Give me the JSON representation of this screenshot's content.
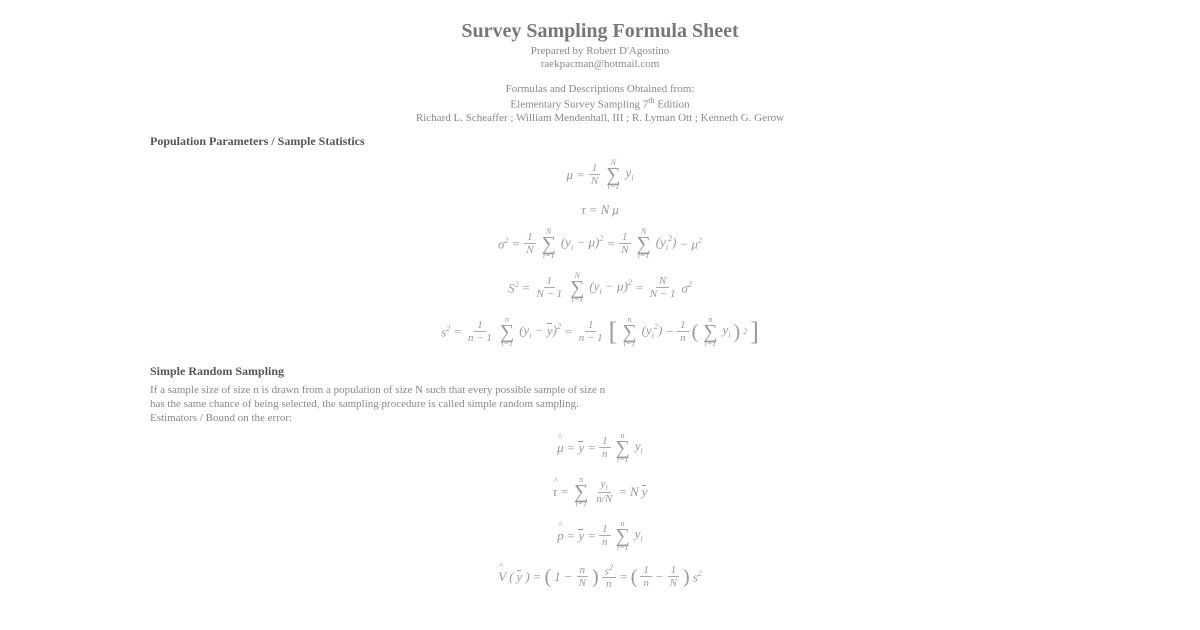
{
  "header": {
    "title": "Survey Sampling Formula Sheet",
    "prepared_by": "Prepared by Robert D'Agostino",
    "email": "raekpacman@hotmail.com",
    "source_line1": "Formulas and Descriptions Obtained from:",
    "source_line2": "Elementary Survey Sampling 7",
    "source_line2_sup": "th",
    "source_line2_suffix": " Edition",
    "authors": "Richard L. Scheaffer ; William Mendenhall, III ; R. Lyman Ott ; Kenneth G. Gerow"
  },
  "sections": {
    "pop_params": {
      "heading": "Population Parameters / Sample Statistics"
    },
    "srs": {
      "heading": "Simple Random Sampling",
      "desc_line1": "If a sample size of size n is drawn from a population of size N such that every possible sample of size n",
      "desc_line2": "has the same chance of being selected, the sampling procedure is called simple random sampling.",
      "desc_line3": "Estimators / Bound on the error:"
    }
  },
  "formulas": {
    "mu": {
      "lhs_sym": "μ",
      "eq": "=",
      "frac_num": "1",
      "frac_den": "N",
      "sum_upper": "N",
      "sum_lower": "i=1",
      "term": "y",
      "term_sub": "i"
    },
    "tau": {
      "lhs_sym": "τ",
      "eq": "=",
      "rhs1": "N",
      "rhs2": "μ"
    },
    "sigma2": {
      "lhs_sym": "σ",
      "lhs_sup": "2",
      "eq": "=",
      "frac1_num": "1",
      "frac1_den": "N",
      "sum1_upper": "N",
      "sum1_lower": "i=1",
      "paren1": "(y",
      "paren1_sub": "i",
      "minus": " − μ)",
      "paren1_sup": "2",
      "eq2": "=",
      "frac2_num": "1",
      "frac2_den": "N",
      "sum2_upper": "N",
      "sum2_lower": "i=1",
      "paren2": "(y",
      "paren2_sub": "i",
      "paren2_sup": "2",
      "paren2_close": ")",
      "minus2": " − μ",
      "final_sup": "2"
    },
    "S2": {
      "lhs_sym": "S",
      "lhs_sup": "2",
      "eq": "=",
      "frac1_num": "1",
      "frac1_den": "N − 1",
      "sum1_upper": "N",
      "sum1_lower": "i=1",
      "paren1": "(y",
      "paren1_sub": "i",
      "minus": " − μ)",
      "paren1_sup": "2",
      "eq2": "=",
      "frac2_num": "N",
      "frac2_den": "N − 1",
      "rhs_sym": "σ",
      "rhs_sup": "2"
    },
    "s2_lower": {
      "lhs_sym": "s",
      "lhs_sup": "2",
      "eq": "=",
      "frac1_num": "1",
      "frac1_den": "n − 1",
      "sum1_upper": "n",
      "sum1_lower": "i=1",
      "paren1": "(y",
      "paren1_sub": "i",
      "minus": " − ",
      "ybar": "y",
      "paren_close": ")",
      "paren1_sup": "2",
      "eq2": "=",
      "frac2_num": "1",
      "frac2_den": "n − 1",
      "sum2_upper": "n",
      "sum2_lower": "i=1",
      "paren2": "(y",
      "paren2_sub": "i",
      "paren2_sup": "2",
      "paren2_close": ")",
      "minus2": " − ",
      "frac3_num": "1",
      "frac3_den": "n",
      "sum3_upper": "n",
      "sum3_lower": "i=1",
      "term3": "y",
      "term3_sub": "i",
      "final_sup": "2"
    },
    "muhat": {
      "lhs_sym": "μ",
      "eq": "=",
      "ybar": "y",
      "eq2": "=",
      "frac_num": "1",
      "frac_den": "n",
      "sum_upper": "n",
      "sum_lower": "i=1",
      "term": "y",
      "term_sub": "i"
    },
    "tauhat": {
      "lhs_sym": "τ",
      "eq": "=",
      "sum_upper": "n",
      "sum_lower": "i=1",
      "frac_num_sym": "y",
      "frac_num_sub": "i",
      "frac_den": "n/N",
      "eq2": "=",
      "rhs1": "N",
      "ybar": "y"
    },
    "phat": {
      "lhs_sym": "p",
      "eq": "=",
      "ybar": "y",
      "eq2": "=",
      "frac_num": "1",
      "frac_den": "n",
      "sum_upper": "n",
      "sum_lower": "i=1",
      "term": "y",
      "term_sub": "i"
    },
    "varybar": {
      "lhs_sym": "V",
      "lhs_arg": "y",
      "eq": "=",
      "open": "(1 − ",
      "frac1_num": "n",
      "frac1_den": "N",
      "close": ")",
      "frac2_num": "s",
      "frac2_num_sup": "2",
      "frac2_den": "n",
      "eq2": "=",
      "open2": "(",
      "frac3_num": "1",
      "frac3_den": "n",
      "minus": " − ",
      "frac4_num": "1",
      "frac4_den": "N",
      "close2": ")",
      "rhs_sym": "s",
      "rhs_sup": "2"
    }
  },
  "colors": {
    "text_main": "#888888",
    "text_heading": "#555555",
    "background": "#ffffff",
    "rule": "#aaaaaa"
  },
  "typography": {
    "title_fontsize": 20,
    "subtitle_fontsize": 11,
    "heading_fontsize": 12,
    "body_fontsize": 11,
    "formula_fontsize": 13,
    "font_family": "Georgia, serif"
  }
}
